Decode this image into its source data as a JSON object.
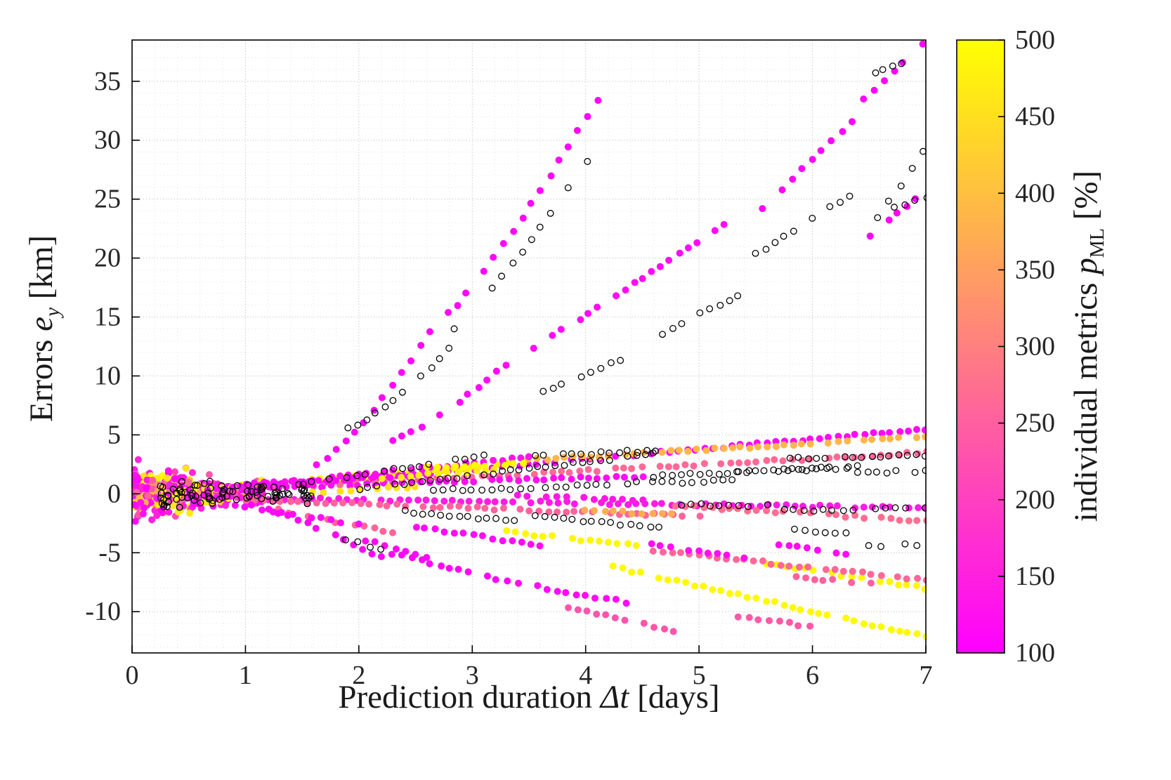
{
  "chart_data": {
    "type": "scatter",
    "title": "",
    "xlabel": {
      "pre": "Prediction duration ",
      "var": "Δt",
      "post": " [days]"
    },
    "ylabel": {
      "pre": "Errors ",
      "var": "e",
      "sub": "y",
      "post": " [km]"
    },
    "xlim": [
      0,
      7
    ],
    "ylim": [
      -13.5,
      38.5
    ],
    "xticks": [
      0,
      1,
      2,
      3,
      4,
      5,
      6,
      7
    ],
    "yticks": [
      -10,
      -5,
      0,
      5,
      10,
      15,
      20,
      25,
      30,
      35
    ],
    "x_minor_step": 0.2,
    "y_minor_step": 1,
    "grid": "dotted",
    "style": {
      "text_color": "#262626",
      "axis_color": "#000000",
      "grid_major_color": "#c4c4c4",
      "grid_minor_color": "#e2e2e2",
      "background": "#ffffff"
    },
    "marker": {
      "filled_radius": 5,
      "open_radius": 4.3,
      "open_stroke": "#000000",
      "open_stroke_width": 1.3
    },
    "colorbar": {
      "label": {
        "pre": "individual metrics ",
        "var": "p",
        "sub": "ML",
        "post": " [%]"
      },
      "min": 100,
      "max": 500,
      "ticks": [
        100,
        150,
        200,
        250,
        300,
        350,
        400,
        450,
        500
      ],
      "colormap": "spring",
      "color_low": "#ff00ff",
      "color_high": "#ffff00"
    },
    "tracks": [
      [
        1.55,
        2.62,
        2.2,
        13.8,
        108,
        0.4
      ],
      [
        2.78,
        4.1,
        15.3,
        33.3,
        108,
        0.15
      ],
      [
        1.9,
        2.8,
        5.6,
        12.3,
        "open",
        0.3
      ],
      [
        2.85,
        4.02,
        13.9,
        28.2,
        "open",
        0.1
      ],
      [
        2.3,
        3.3,
        4.6,
        11.0,
        112,
        0.3
      ],
      [
        3.55,
        5.3,
        12.4,
        23.3,
        116,
        0
      ],
      [
        3.62,
        4.4,
        8.6,
        11.7,
        "open",
        0
      ],
      [
        4.68,
        5.35,
        13.6,
        16.9,
        "open",
        0
      ],
      [
        5.55,
        6.35,
        24.2,
        31.6,
        104,
        0
      ],
      [
        6.45,
        6.98,
        33.4,
        38.2,
        104,
        0
      ],
      [
        5.5,
        6.32,
        20.3,
        25.3,
        "open",
        0
      ],
      [
        6.5,
        7.0,
        21.8,
        25.8,
        107,
        0
      ],
      [
        6.58,
        6.97,
        23.4,
        29.0,
        "open",
        0
      ],
      [
        6.55,
        6.78,
        35.8,
        36.6,
        "open",
        0
      ],
      [
        6.72,
        7.0,
        24.3,
        25.1,
        "open",
        0
      ],
      [
        1.0,
        7.0,
        0.4,
        5.5,
        112,
        0
      ],
      [
        3.5,
        7.0,
        2.9,
        4.8,
        385,
        0
      ],
      [
        1.2,
        7.0,
        0.5,
        3.5,
        265,
        0
      ],
      [
        0.4,
        3.3,
        0.2,
        2.5,
        480,
        0
      ],
      [
        0.8,
        3.5,
        0.4,
        3.1,
        128,
        0
      ],
      [
        1.5,
        3.1,
        0.9,
        3.2,
        "open",
        0
      ],
      [
        2.0,
        4.6,
        0.4,
        3.4,
        "open",
        0
      ],
      [
        3.55,
        4.62,
        3.2,
        3.7,
        "open",
        0
      ],
      [
        4.6,
        6.4,
        1.5,
        2.3,
        "open",
        0
      ],
      [
        5.8,
        7.0,
        3.0,
        3.3,
        "open",
        0
      ],
      [
        6.4,
        7.0,
        1.75,
        1.95,
        "open",
        0
      ],
      [
        0.5,
        4.5,
        0.3,
        1.5,
        122,
        0
      ],
      [
        2.6,
        3.45,
        2.25,
        2.5,
        492,
        0
      ],
      [
        1.0,
        2.6,
        0.8,
        1.6,
        116,
        0
      ],
      [
        2.65,
        3.6,
        0.3,
        0.5,
        "open",
        0
      ],
      [
        3.65,
        4.45,
        0.6,
        0.95,
        "open",
        0
      ],
      [
        4.5,
        5.3,
        0.9,
        1.1,
        "open",
        0
      ],
      [
        5.35,
        6.3,
        1.85,
        2.1,
        "open",
        0
      ],
      [
        3.4,
        4.5,
        -0.2,
        -0.5,
        135,
        0
      ],
      [
        2.2,
        3.2,
        1.4,
        2.0,
        470,
        0
      ],
      [
        1.6,
        2.5,
        0.1,
        0.6,
        455,
        0
      ],
      [
        0.5,
        7.0,
        -0.3,
        -1.2,
        142,
        0
      ],
      [
        1.0,
        5.0,
        -0.5,
        -1.9,
        255,
        0
      ],
      [
        4.8,
        7.0,
        -1.0,
        -2.3,
        272,
        0
      ],
      [
        4.0,
        4.75,
        -1.4,
        -1.75,
        372,
        0
      ],
      [
        2.4,
        3.45,
        -1.5,
        -2.4,
        "open",
        0
      ],
      [
        3.55,
        4.65,
        -1.9,
        -2.9,
        "open",
        0
      ],
      [
        4.85,
        5.6,
        -0.9,
        -1.0,
        "open",
        0
      ],
      [
        5.75,
        6.35,
        -1.35,
        -1.45,
        "open",
        0
      ],
      [
        6.55,
        7.0,
        -1.3,
        -1.2,
        "open",
        0
      ],
      [
        6.5,
        6.92,
        -4.45,
        -4.3,
        "open",
        0
      ],
      [
        5.85,
        6.3,
        -3.1,
        -3.3,
        "open",
        0
      ],
      [
        1.3,
        2.3,
        -1.4,
        -3.3,
        258,
        0
      ],
      [
        0.9,
        2.0,
        -1.0,
        -2.6,
        120,
        0
      ],
      [
        2.5,
        3.6,
        -2.8,
        -4.4,
        118,
        0
      ],
      [
        3.3,
        4.45,
        -3.2,
        -4.4,
        488,
        0
      ],
      [
        1.05,
        2.2,
        -0.9,
        -5.4,
        112,
        0.2
      ],
      [
        1.78,
        2.2,
        -3.6,
        -4.7,
        "open",
        0
      ],
      [
        2.3,
        3.3,
        -5.1,
        -7.4,
        110,
        0
      ],
      [
        2.05,
        2.6,
        -3.9,
        -5.5,
        112,
        0
      ],
      [
        3.4,
        4.35,
        -7.6,
        -9.2,
        115,
        0
      ],
      [
        3.85,
        4.77,
        -9.6,
        -11.6,
        232,
        0
      ],
      [
        5.35,
        5.97,
        -10.4,
        -11.2,
        240,
        0
      ],
      [
        4.25,
        7.0,
        -6.2,
        -12.1,
        492,
        0
      ],
      [
        5.6,
        7.0,
        -5.9,
        -8.0,
        486,
        0
      ],
      [
        4.6,
        7.0,
        -4.8,
        -7.3,
        262,
        0
      ],
      [
        5.7,
        6.3,
        -4.3,
        -5.2,
        116,
        0
      ],
      [
        5.85,
        6.6,
        -7.1,
        -7.7,
        252,
        0
      ],
      [
        4.5,
        5.4,
        -4.1,
        -5.5,
        124,
        0
      ]
    ],
    "cluster": {
      "filled_n": 380,
      "open_n": 90,
      "x_range": [
        0.02,
        1.15
      ],
      "y_spread": 3.2,
      "p_mix": [
        [
          0.5,
          100,
          160
        ],
        [
          0.15,
          200,
          300
        ],
        [
          0.1,
          330,
          420
        ],
        [
          0.25,
          450,
          500
        ]
      ]
    }
  }
}
